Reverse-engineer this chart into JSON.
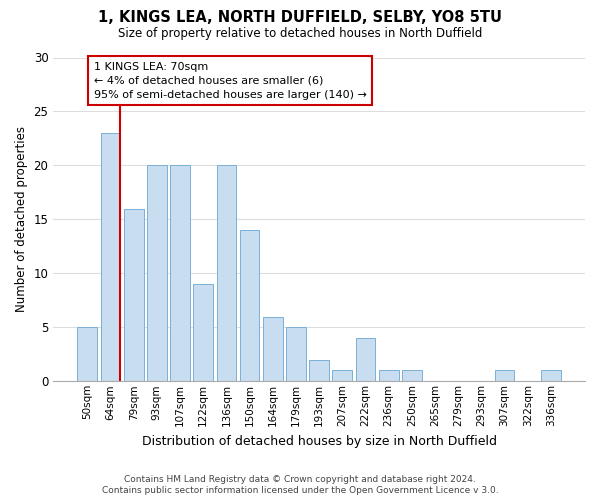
{
  "title": "1, KINGS LEA, NORTH DUFFIELD, SELBY, YO8 5TU",
  "subtitle": "Size of property relative to detached houses in North Duffield",
  "xlabel": "Distribution of detached houses by size in North Duffield",
  "ylabel": "Number of detached properties",
  "footnote1": "Contains HM Land Registry data © Crown copyright and database right 2024.",
  "footnote2": "Contains public sector information licensed under the Open Government Licence v 3.0.",
  "bar_labels": [
    "50sqm",
    "64sqm",
    "79sqm",
    "93sqm",
    "107sqm",
    "122sqm",
    "136sqm",
    "150sqm",
    "164sqm",
    "179sqm",
    "193sqm",
    "207sqm",
    "222sqm",
    "236sqm",
    "250sqm",
    "265sqm",
    "279sqm",
    "293sqm",
    "307sqm",
    "322sqm",
    "336sqm"
  ],
  "bar_values": [
    5,
    23,
    16,
    20,
    20,
    9,
    20,
    14,
    6,
    5,
    2,
    1,
    4,
    1,
    1,
    0,
    0,
    0,
    1,
    0,
    1
  ],
  "bar_color": "#c8ddf0",
  "bar_edge_color": "#7ab0d4",
  "vline_x_idx": 1,
  "vline_color": "#cc0000",
  "annotation_line1": "1 KINGS LEA: 70sqm",
  "annotation_line2": "← 4% of detached houses are smaller (6)",
  "annotation_line3": "95% of semi-detached houses are larger (140) →",
  "annotation_box_facecolor": "#ffffff",
  "annotation_box_edgecolor": "#cc0000",
  "ylim": [
    0,
    30
  ],
  "yticks": [
    0,
    5,
    10,
    15,
    20,
    25,
    30
  ],
  "bg_color": "#ffffff",
  "grid_color": "#dddddd"
}
